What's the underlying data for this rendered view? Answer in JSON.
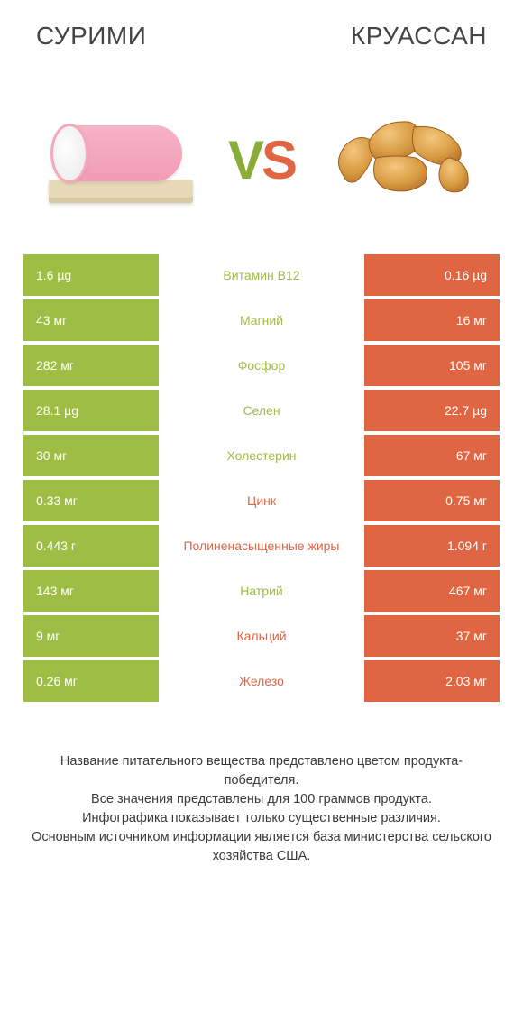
{
  "titles": {
    "left": "СУРИМИ",
    "right": "КРУАССАН"
  },
  "vs": {
    "v": "V",
    "s": "S"
  },
  "colors": {
    "green": "#9ebd44",
    "orange": "#e06543",
    "row_bg": "#ffffff"
  },
  "rows": [
    {
      "left": "1.6 µg",
      "mid": "Витамин B12",
      "right": "0.16 µg",
      "winner": "left"
    },
    {
      "left": "43 мг",
      "mid": "Магний",
      "right": "16 мг",
      "winner": "left"
    },
    {
      "left": "282 мг",
      "mid": "Фосфор",
      "right": "105 мг",
      "winner": "left"
    },
    {
      "left": "28.1 µg",
      "mid": "Селен",
      "right": "22.7 µg",
      "winner": "left"
    },
    {
      "left": "30 мг",
      "mid": "Холестерин",
      "right": "67 мг",
      "winner": "left"
    },
    {
      "left": "0.33 мг",
      "mid": "Цинк",
      "right": "0.75 мг",
      "winner": "right"
    },
    {
      "left": "0.443 г",
      "mid": "Полиненасыщенные жиры",
      "right": "1.094 г",
      "winner": "right"
    },
    {
      "left": "143 мг",
      "mid": "Натрий",
      "right": "467 мг",
      "winner": "left"
    },
    {
      "left": "9 мг",
      "mid": "Кальций",
      "right": "37 мг",
      "winner": "right"
    },
    {
      "left": "0.26 мг",
      "mid": "Железо",
      "right": "2.03 мг",
      "winner": "right"
    }
  ],
  "footer": [
    "Название питательного вещества представлено цветом продукта-победителя.",
    "Все значения представлены для 100 граммов продукта.",
    "Инфографика показывает только существенные различия.",
    "Основным источником информации является база министерства сельского хозяйства США."
  ]
}
